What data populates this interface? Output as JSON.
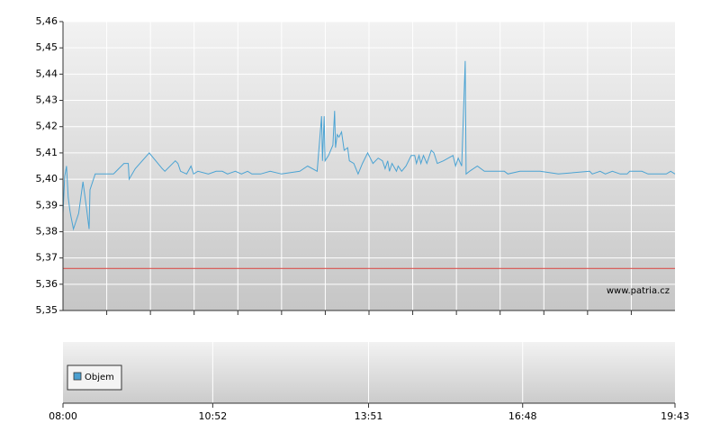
{
  "chart_data": [
    {
      "type": "line",
      "xlim": [
        "08:00",
        "19:43"
      ],
      "ylim": [
        5.35,
        5.46
      ],
      "yticks": [
        {
          "value": 5.35,
          "label": "5,35"
        },
        {
          "value": 5.36,
          "label": "5,36"
        },
        {
          "value": 5.37,
          "label": "5,37"
        },
        {
          "value": 5.38,
          "label": "5,38"
        },
        {
          "value": 5.39,
          "label": "5,39"
        },
        {
          "value": 5.4,
          "label": "5,40"
        },
        {
          "value": 5.41,
          "label": "5,41"
        },
        {
          "value": 5.42,
          "label": "5,42"
        },
        {
          "value": 5.43,
          "label": "5,43"
        },
        {
          "value": 5.44,
          "label": "5,44"
        },
        {
          "value": 5.45,
          "label": "5,45"
        },
        {
          "value": 5.46,
          "label": "5,46"
        }
      ],
      "grid": true,
      "color": "#4ba3d3",
      "x": [
        "08:00",
        "08:02",
        "08:04",
        "08:06",
        "08:08",
        "08:09",
        "08:12",
        "08:18",
        "08:23",
        "08:27",
        "08:30",
        "08:31",
        "08:37",
        "08:58",
        "09:10",
        "09:15",
        "09:16",
        "09:23",
        "09:39",
        "09:54",
        "09:57",
        "10:09",
        "10:12",
        "10:15",
        "10:22",
        "10:27",
        "10:30",
        "10:35",
        "10:47",
        "10:56",
        "11:03",
        "11:09",
        "11:18",
        "11:25",
        "11:32",
        "11:37",
        "11:47",
        "11:58",
        "12:11",
        "12:32",
        "12:41",
        "12:52",
        "12:57",
        "12:58",
        "13:00",
        "13:01",
        "13:05",
        "13:10",
        "13:12",
        "13:13",
        "13:15",
        "13:17",
        "13:20",
        "13:23",
        "13:27",
        "13:29",
        "13:34",
        "13:39",
        "13:44",
        "13:50",
        "13:56",
        "14:02",
        "14:07",
        "14:10",
        "14:13",
        "14:15",
        "14:18",
        "14:23",
        "14:25",
        "14:29",
        "14:34",
        "14:40",
        "14:44",
        "14:46",
        "14:49",
        "14:51",
        "14:54",
        "14:58",
        "15:03",
        "15:06",
        "15:10",
        "15:17",
        "15:28",
        "15:31",
        "15:34",
        "15:38",
        "15:42",
        "15:43",
        "15:47",
        "15:56",
        "16:04",
        "16:27",
        "16:31",
        "16:45",
        "17:08",
        "17:29",
        "18:05",
        "18:08",
        "18:17",
        "18:23",
        "18:31",
        "18:40",
        "18:48",
        "18:51",
        "19:05",
        "19:12",
        "19:33",
        "19:38",
        "19:43"
      ],
      "values": [
        5.387,
        5.401,
        5.405,
        5.393,
        5.388,
        5.386,
        5.381,
        5.387,
        5.399,
        5.389,
        5.381,
        5.396,
        5.402,
        5.402,
        5.406,
        5.406,
        5.4,
        5.404,
        5.41,
        5.404,
        5.403,
        5.407,
        5.406,
        5.403,
        5.402,
        5.405,
        5.402,
        5.403,
        5.402,
        5.403,
        5.403,
        5.402,
        5.403,
        5.402,
        5.403,
        5.402,
        5.402,
        5.403,
        5.402,
        5.403,
        5.405,
        5.403,
        5.424,
        5.407,
        5.424,
        5.407,
        5.409,
        5.413,
        5.426,
        5.412,
        5.417,
        5.416,
        5.418,
        5.411,
        5.412,
        5.407,
        5.406,
        5.402,
        5.406,
        5.41,
        5.406,
        5.408,
        5.407,
        5.404,
        5.407,
        5.403,
        5.406,
        5.403,
        5.405,
        5.403,
        5.405,
        5.409,
        5.409,
        5.406,
        5.409,
        5.406,
        5.409,
        5.406,
        5.411,
        5.41,
        5.406,
        5.407,
        5.409,
        5.405,
        5.408,
        5.405,
        5.445,
        5.402,
        5.403,
        5.405,
        5.403,
        5.403,
        5.402,
        5.403,
        5.403,
        5.402,
        5.403,
        5.402,
        5.403,
        5.402,
        5.403,
        5.402,
        5.402,
        5.403,
        5.403,
        5.402,
        5.402,
        5.403,
        5.402
      ],
      "reference_line": {
        "value": 5.366,
        "color": "#d9534f"
      },
      "annotation": "www.patria.cz"
    },
    {
      "type": "volume",
      "xlim": [
        "08:00",
        "19:43"
      ],
      "xticks": [
        "08:00",
        "10:52",
        "13:51",
        "16:48",
        "19:43"
      ],
      "legend": {
        "name": "Objem",
        "color": "#4a9fd0"
      }
    }
  ]
}
